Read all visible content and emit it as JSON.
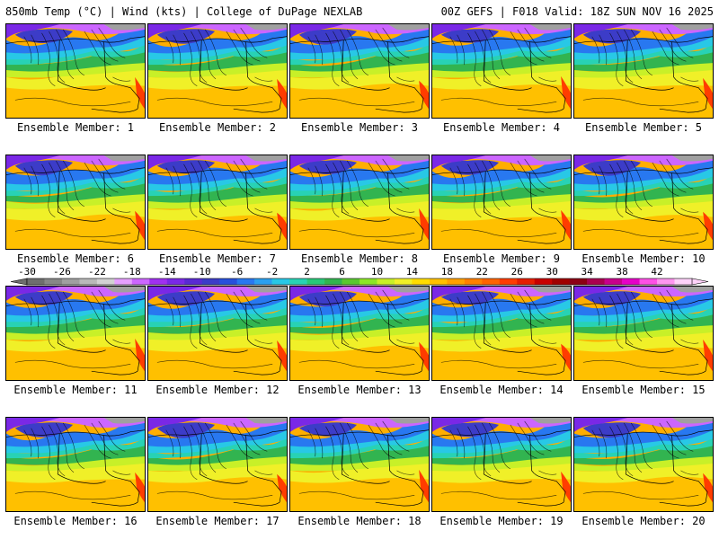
{
  "header": {
    "left_title": "850mb Temp (°C) | Wind (kts) | College of DuPage NEXLAB",
    "right_title": "00Z GEFS | F018 Valid: 18Z SUN NOV 16 2025"
  },
  "panels": [
    {
      "label": "Ensemble Member: 1"
    },
    {
      "label": "Ensemble Member: 2"
    },
    {
      "label": "Ensemble Member: 3"
    },
    {
      "label": "Ensemble Member: 4"
    },
    {
      "label": "Ensemble Member: 5"
    },
    {
      "label": "Ensemble Member: 6"
    },
    {
      "label": "Ensemble Member: 7"
    },
    {
      "label": "Ensemble Member: 8"
    },
    {
      "label": "Ensemble Member: 9"
    },
    {
      "label": "Ensemble Member: 10"
    },
    {
      "label": "Ensemble Member: 11"
    },
    {
      "label": "Ensemble Member: 12"
    },
    {
      "label": "Ensemble Member: 13"
    },
    {
      "label": "Ensemble Member: 14"
    },
    {
      "label": "Ensemble Member: 15"
    },
    {
      "label": "Ensemble Member: 16"
    },
    {
      "label": "Ensemble Member: 17"
    },
    {
      "label": "Ensemble Member: 18"
    },
    {
      "label": "Ensemble Member: 19"
    },
    {
      "label": "Ensemble Member: 20"
    }
  ],
  "colorbar": {
    "tick_labels": [
      "-30",
      "-26",
      "-22",
      "-18",
      "-14",
      "-10",
      "-6",
      "-2",
      "2",
      "6",
      "10",
      "14",
      "18",
      "22",
      "26",
      "30",
      "34",
      "38",
      "42"
    ],
    "colors": [
      "#6e6e6e",
      "#878787",
      "#a0a0a0",
      "#b9b9b9",
      "#d2d2d2",
      "#e6a0ff",
      "#cc66ff",
      "#a030f0",
      "#7a28e6",
      "#5a2ad2",
      "#3c3cc8",
      "#2850dc",
      "#2878f0",
      "#2aa0f0",
      "#28c8e6",
      "#28d2b4",
      "#28c878",
      "#32b450",
      "#5ac832",
      "#8ce628",
      "#c8f028",
      "#f0f028",
      "#ffdc00",
      "#ffc000",
      "#ffa000",
      "#ff8000",
      "#ff6400",
      "#ff3c00",
      "#e61e00",
      "#c80000",
      "#a00000",
      "#8c0014",
      "#aa0050",
      "#c8008c",
      "#e600c8",
      "#ff50e6",
      "#ff96f0",
      "#ffd2fa"
    ]
  }
}
